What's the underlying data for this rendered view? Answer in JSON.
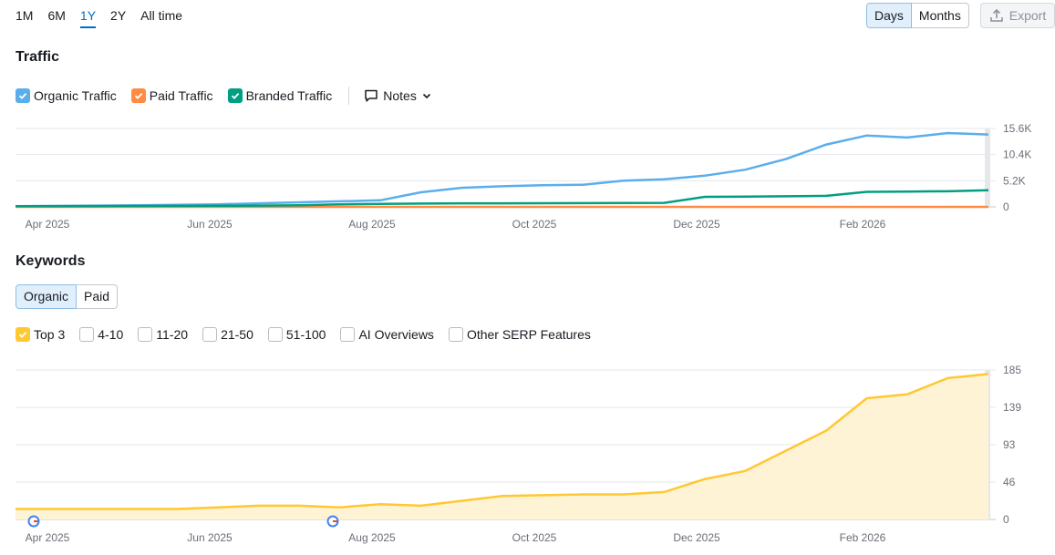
{
  "periods": [
    "1M",
    "6M",
    "1Y",
    "2Y",
    "All time"
  ],
  "active_period": "1Y",
  "view_toggle": {
    "days": "Days",
    "months": "Months",
    "active": "Days"
  },
  "export_label": "Export",
  "traffic": {
    "title": "Traffic",
    "legend": [
      {
        "label": "Organic Traffic",
        "color": "#5aaeec",
        "checked": true
      },
      {
        "label": "Paid Traffic",
        "color": "#ff8c42",
        "checked": true
      },
      {
        "label": "Branded Traffic",
        "color": "#009f81",
        "checked": true
      }
    ],
    "notes_label": "Notes"
  },
  "keywords": {
    "title": "Keywords",
    "tabs": [
      "Organic",
      "Paid"
    ],
    "active_tab": "Organic",
    "filters": [
      {
        "label": "Top 3",
        "checked": true,
        "color": "#ffc832"
      },
      {
        "label": "4-10",
        "checked": false
      },
      {
        "label": "11-20",
        "checked": false
      },
      {
        "label": "21-50",
        "checked": false
      },
      {
        "label": "51-100",
        "checked": false
      },
      {
        "label": "AI Overviews",
        "checked": false
      },
      {
        "label": "Other SERP Features",
        "checked": false
      }
    ]
  },
  "chart_data": [
    {
      "type": "line",
      "x_ticks": [
        "Apr 2025",
        "Jun 2025",
        "Aug 2025",
        "Oct 2025",
        "Dec 2025",
        "Feb 2026"
      ],
      "y_ticks": [
        "15.6K",
        "10.4K",
        "5.2K",
        "0"
      ],
      "ylim": [
        0,
        15600
      ],
      "grid": true,
      "series": [
        {
          "name": "Organic Traffic",
          "color": "#5aaeec",
          "values": [
            150,
            200,
            250,
            300,
            400,
            500,
            700,
            900,
            1100,
            1300,
            2900,
            3800,
            4100,
            4300,
            4400,
            5200,
            5500,
            6200,
            7400,
            9500,
            12400,
            14200,
            13800,
            14700,
            14400
          ]
        },
        {
          "name": "Paid Traffic",
          "color": "#ff8c42",
          "values": [
            0,
            0,
            0,
            0,
            0,
            0,
            0,
            0,
            0,
            0,
            0,
            0,
            0,
            0,
            0,
            0,
            0,
            0,
            0,
            0,
            0,
            0,
            0,
            0,
            0
          ]
        },
        {
          "name": "Branded Traffic",
          "color": "#009f81",
          "values": [
            150,
            150,
            160,
            180,
            200,
            220,
            250,
            300,
            500,
            600,
            650,
            700,
            700,
            720,
            740,
            780,
            800,
            2000,
            2050,
            2100,
            2200,
            3000,
            3050,
            3100,
            3300
          ]
        }
      ]
    },
    {
      "type": "area",
      "x_ticks": [
        "Apr 2025",
        "Jun 2025",
        "Aug 2025",
        "Oct 2025",
        "Dec 2025",
        "Feb 2026"
      ],
      "y_ticks": [
        "185",
        "139",
        "93",
        "46",
        "0"
      ],
      "ylim": [
        0,
        185
      ],
      "grid": true,
      "series": [
        {
          "name": "Top 3",
          "color": "#ffc832",
          "values": [
            13,
            13,
            13,
            13,
            13,
            15,
            17,
            17,
            15,
            19,
            17,
            23,
            29,
            30,
            31,
            31,
            34,
            50,
            60,
            85,
            110,
            150,
            155,
            175,
            180
          ]
        }
      ]
    }
  ]
}
